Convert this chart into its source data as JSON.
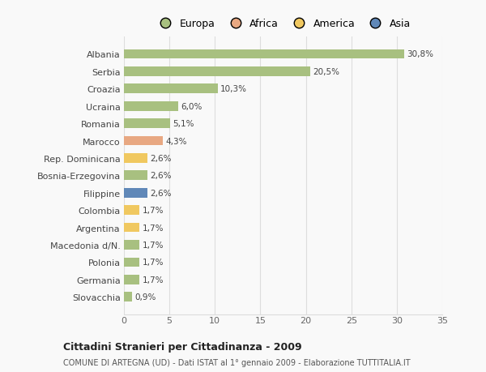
{
  "categories": [
    "Albania",
    "Serbia",
    "Croazia",
    "Ucraina",
    "Romania",
    "Marocco",
    "Rep. Dominicana",
    "Bosnia-Erzegovina",
    "Filippine",
    "Colombia",
    "Argentina",
    "Macedonia d/N.",
    "Polonia",
    "Germania",
    "Slovacchia"
  ],
  "values": [
    30.8,
    20.5,
    10.3,
    6.0,
    5.1,
    4.3,
    2.6,
    2.6,
    2.6,
    1.7,
    1.7,
    1.7,
    1.7,
    1.7,
    0.9
  ],
  "labels": [
    "30,8%",
    "20,5%",
    "10,3%",
    "6,0%",
    "5,1%",
    "4,3%",
    "2,6%",
    "2,6%",
    "2,6%",
    "1,7%",
    "1,7%",
    "1,7%",
    "1,7%",
    "1,7%",
    "0,9%"
  ],
  "colors": [
    "#a8c080",
    "#a8c080",
    "#a8c080",
    "#a8c080",
    "#a8c080",
    "#e8a882",
    "#f0c860",
    "#a8c080",
    "#6088b8",
    "#f0c860",
    "#f0c860",
    "#a8c080",
    "#a8c080",
    "#a8c080",
    "#a8c080"
  ],
  "legend_labels": [
    "Europa",
    "Africa",
    "America",
    "Asia"
  ],
  "legend_colors": [
    "#a8c080",
    "#e8a882",
    "#f0c860",
    "#6088b8"
  ],
  "title": "Cittadini Stranieri per Cittadinanza - 2009",
  "subtitle": "COMUNE DI ARTEGNA (UD) - Dati ISTAT al 1° gennaio 2009 - Elaborazione TUTTITALIA.IT",
  "xlim": [
    0,
    35
  ],
  "xticks": [
    0,
    5,
    10,
    15,
    20,
    25,
    30,
    35
  ],
  "background_color": "#f9f9f9",
  "grid_color": "#dddddd",
  "bar_height": 0.55
}
